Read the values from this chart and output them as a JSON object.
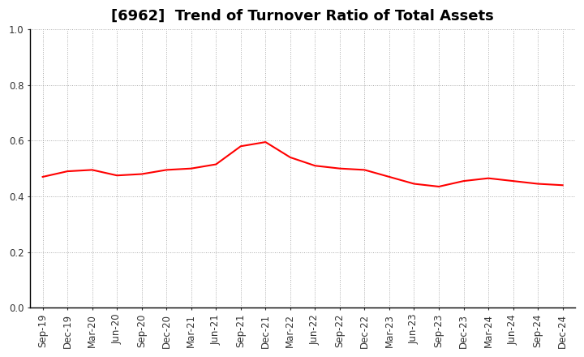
{
  "title": "[6962]  Trend of Turnover Ratio of Total Assets",
  "x_labels": [
    "Sep-19",
    "Dec-19",
    "Mar-20",
    "Jun-20",
    "Sep-20",
    "Dec-20",
    "Mar-21",
    "Jun-21",
    "Sep-21",
    "Dec-21",
    "Mar-22",
    "Jun-22",
    "Sep-22",
    "Dec-22",
    "Mar-23",
    "Jun-23",
    "Sep-23",
    "Dec-23",
    "Mar-24",
    "Jun-24",
    "Sep-24",
    "Dec-24"
  ],
  "values": [
    0.47,
    0.49,
    0.495,
    0.475,
    0.48,
    0.495,
    0.5,
    0.515,
    0.58,
    0.595,
    0.54,
    0.51,
    0.5,
    0.495,
    0.47,
    0.445,
    0.435,
    0.455,
    0.465,
    0.455,
    0.445,
    0.44
  ],
  "line_color": "#ff0000",
  "background_color": "#ffffff",
  "plot_bg_color": "#ffffff",
  "grid_color": "#aaaaaa",
  "ylim": [
    0.0,
    1.0
  ],
  "yticks": [
    0.0,
    0.2,
    0.4,
    0.6,
    0.8,
    1.0
  ],
  "title_fontsize": 13,
  "tick_fontsize": 8.5,
  "line_width": 1.5
}
